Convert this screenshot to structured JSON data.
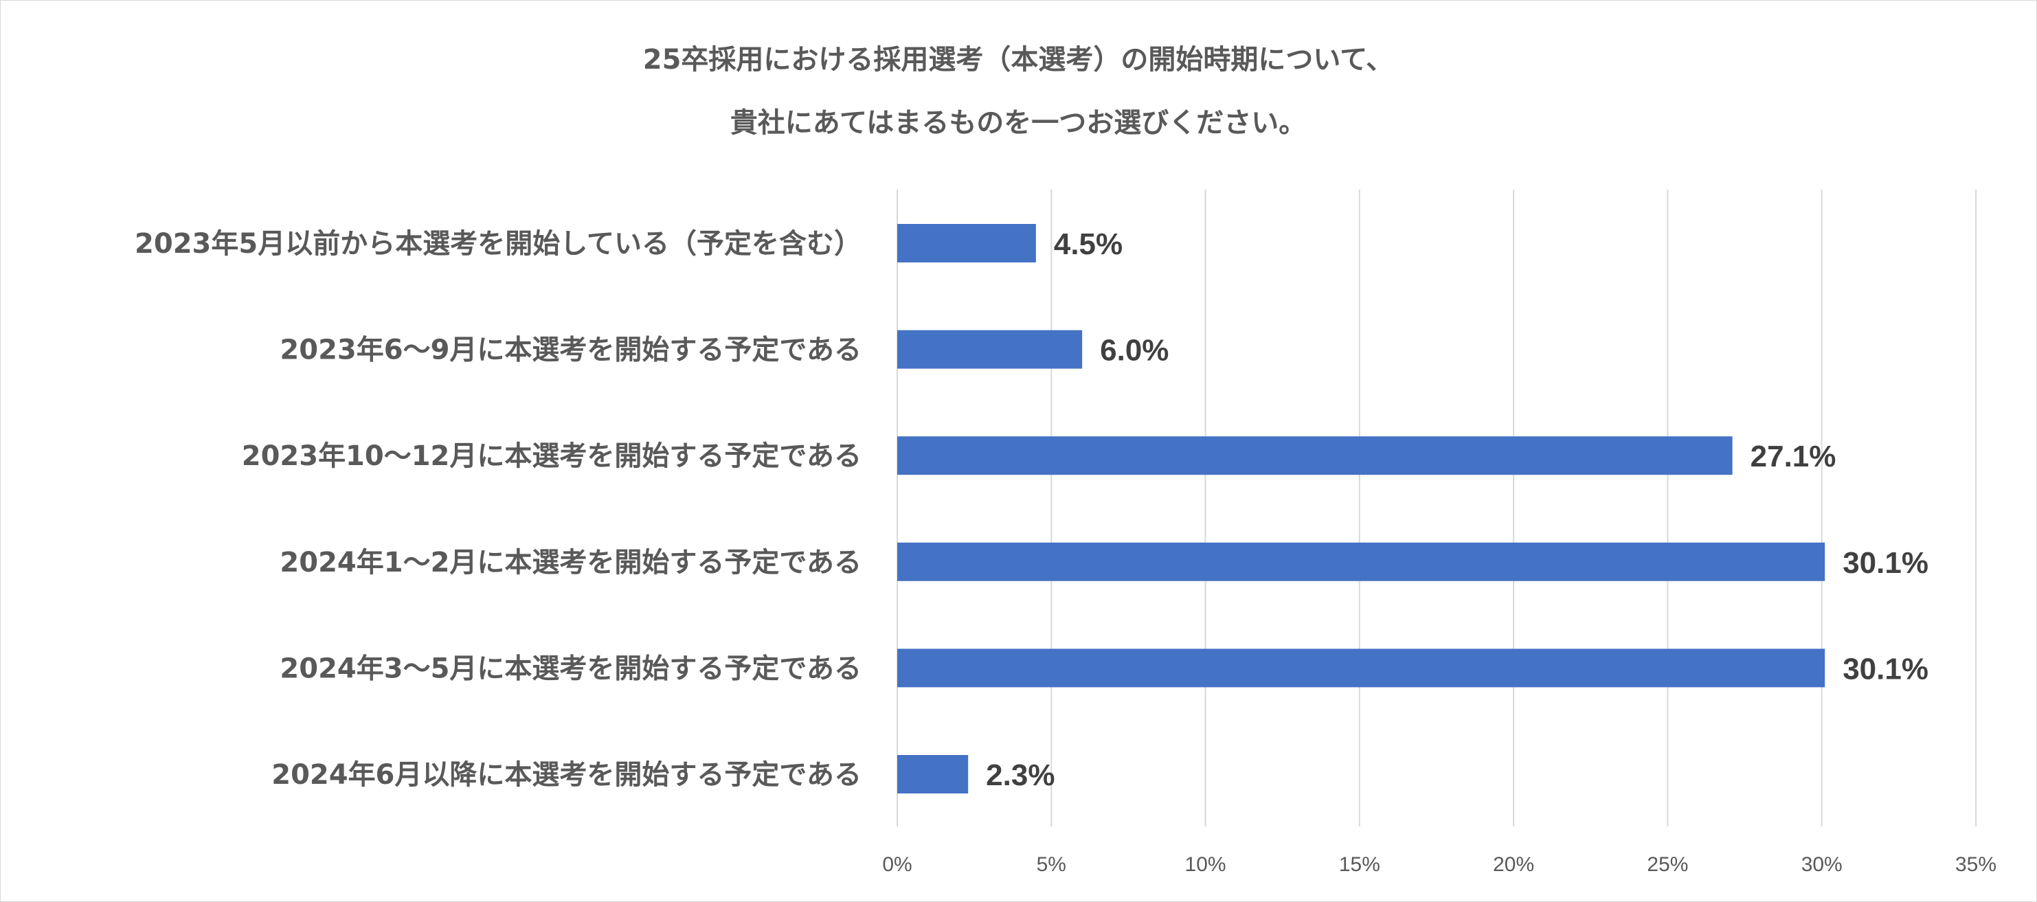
{
  "chart_data": {
    "type": "bar",
    "orientation": "horizontal",
    "title_lines": [
      "25卒採用における採用選考（本選考）の開始時期について、",
      "貴社にあてはまるものを一つお選びください。"
    ],
    "categories": [
      "2023年5月以前から本選考を開始している（予定を含む）",
      "2023年6～9月に本選考を開始する予定である",
      "2023年10～12月に本選考を開始する予定である",
      "2024年1～2月に本選考を開始する予定である",
      "2024年3～5月に本選考を開始する予定である",
      "2024年6月以降に本選考を開始する予定である"
    ],
    "values": [
      4.5,
      6.0,
      27.1,
      30.1,
      30.1,
      2.3
    ],
    "value_labels": [
      "4.5%",
      "6.0%",
      "27.1%",
      "30.1%",
      "30.1%",
      "2.3%"
    ],
    "xlim": [
      0,
      35
    ],
    "x_ticks": [
      0,
      5,
      10,
      15,
      20,
      25,
      30,
      35
    ],
    "x_tick_labels": [
      "0%",
      "5%",
      "10%",
      "15%",
      "20%",
      "25%",
      "30%",
      "35%"
    ],
    "grid": true,
    "legend": "none",
    "bar_color": "#4472c4"
  }
}
